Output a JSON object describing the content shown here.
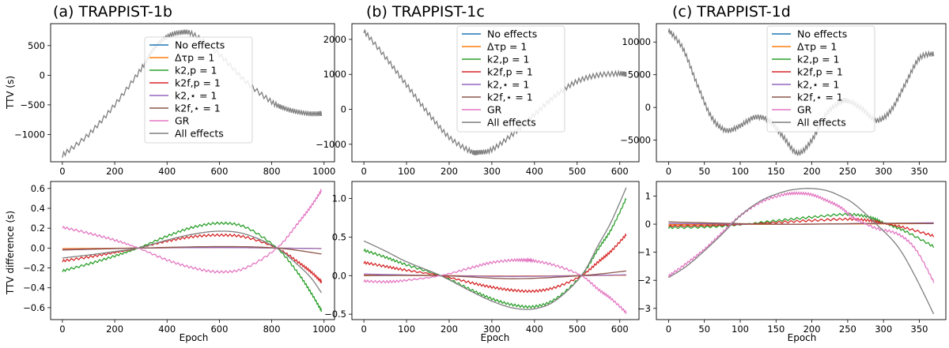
{
  "colors": {
    "No effects": "#1f77b4",
    "Δτp = 1": "#ff7f0e",
    "k2,p = 1": "#2ca02c",
    "k2f,p = 1": "#d62728",
    "k2,⋆ = 1": "#9467bd",
    "k2f,⋆ = 1": "#8c564b",
    "GR": "#e377c2",
    "All effects": "#7f7f7f"
  },
  "chart_data": [
    {
      "type": "line",
      "title": "(a) TRAPPIST-1b",
      "xlabel": "",
      "ylabel": "TTV (s)",
      "xlim": [
        -45,
        1040
      ],
      "ylim": [
        -1460,
        870
      ],
      "xticks": [
        0,
        200,
        400,
        600,
        800,
        1000
      ],
      "yticks": [
        -1000,
        -500,
        0,
        500
      ],
      "legend": [
        "No effects",
        "Δτp = 1",
        "k2,p = 1",
        "k2f,p = 1",
        "k2,⋆ = 1",
        "k2f,⋆ = 1",
        "GR",
        "All effects"
      ],
      "legend_position": "right",
      "series": [
        {
          "name": "All effects",
          "x": [
            0,
            100,
            200,
            300,
            350,
            400,
            450,
            500,
            600,
            700,
            800,
            850,
            900,
            950,
            990
          ],
          "y": [
            -1350,
            -1000,
            -500,
            100,
            450,
            650,
            720,
            690,
            350,
            -100,
            -450,
            -560,
            -620,
            -650,
            -645
          ]
        }
      ]
    },
    {
      "type": "line",
      "title": "(b) TRAPPIST-1c",
      "xlabel": "",
      "ylabel": "",
      "xlim": [
        -28,
        645
      ],
      "ylim": [
        -1500,
        2450
      ],
      "xticks": [
        0,
        100,
        200,
        300,
        400,
        500,
        600
      ],
      "yticks": [
        -1000,
        0,
        1000,
        2000
      ],
      "legend": [
        "No effects",
        "Δτp = 1",
        "k2,p = 1",
        "k2f,p = 1",
        "k2,⋆ = 1",
        "k2f,⋆ = 1",
        "GR",
        "All effects"
      ],
      "legend_position": "top-center",
      "series": [
        {
          "name": "All effects",
          "x": [
            0,
            50,
            100,
            150,
            200,
            250,
            270,
            300,
            350,
            400,
            450,
            500,
            550,
            600,
            615
          ],
          "y": [
            2250,
            1500,
            700,
            -100,
            -800,
            -1200,
            -1230,
            -1150,
            -700,
            -150,
            400,
            800,
            980,
            1020,
            1000
          ]
        }
      ]
    },
    {
      "type": "line",
      "title": "(c) TRAPPIST-1d",
      "xlabel": "",
      "ylabel": "",
      "xlim": [
        -17,
        387
      ],
      "ylim": [
        -8300,
        12800
      ],
      "xticks": [
        0,
        50,
        100,
        150,
        200,
        250,
        300,
        350
      ],
      "yticks": [
        -5000,
        0,
        5000,
        10000
      ],
      "legend": [
        "No effects",
        "Δτp = 1",
        "k2,p = 1",
        "k2f,p = 1",
        "k2,⋆ = 1",
        "k2f,⋆ = 1",
        "GR",
        "All effects"
      ],
      "legend_position": "top-center",
      "series": [
        {
          "name": "All effects",
          "x": [
            0,
            20,
            40,
            60,
            80,
            100,
            120,
            140,
            160,
            180,
            200,
            220,
            240,
            250,
            270,
            290,
            310,
            330,
            350,
            370
          ],
          "y": [
            11800,
            9000,
            3500,
            -1500,
            -3500,
            -2800,
            -1500,
            -2000,
            -4500,
            -7000,
            -5000,
            -1000,
            800,
            1000,
            -200,
            -2000,
            -500,
            3500,
            7500,
            8200
          ]
        }
      ]
    },
    {
      "type": "line",
      "title": "",
      "xlabel": "Epoch",
      "ylabel": "TTV difference (s)",
      "xlim": [
        -45,
        1040
      ],
      "ylim": [
        -0.72,
        0.67
      ],
      "xticks": [
        0,
        200,
        400,
        600,
        800,
        1000
      ],
      "yticks": [
        -0.6,
        -0.4,
        -0.2,
        0.0,
        0.2,
        0.4,
        0.6
      ],
      "series": [
        {
          "name": "Δτp = 1",
          "x": [
            0,
            290,
            600,
            820,
            990
          ],
          "y": [
            -0.005,
            0,
            0.005,
            0,
            -0.005
          ]
        },
        {
          "name": "k2,p = 1",
          "x": [
            0,
            100,
            200,
            290,
            400,
            500,
            600,
            700,
            820,
            900,
            950,
            990
          ],
          "y": [
            -0.23,
            -0.16,
            -0.08,
            0,
            0.12,
            0.21,
            0.25,
            0.21,
            0,
            -0.25,
            -0.45,
            -0.63
          ]
        },
        {
          "name": "k2f,p = 1",
          "x": [
            0,
            100,
            200,
            290,
            400,
            500,
            600,
            700,
            820,
            900,
            950,
            990
          ],
          "y": [
            -0.13,
            -0.09,
            -0.045,
            0,
            0.07,
            0.115,
            0.13,
            0.11,
            0,
            -0.14,
            -0.24,
            -0.34
          ]
        },
        {
          "name": "k2,⋆ = 1",
          "x": [
            0,
            290,
            600,
            820,
            990
          ],
          "y": [
            -0.015,
            0,
            0.005,
            0,
            -0.005
          ]
        },
        {
          "name": "k2f,⋆ = 1",
          "x": [
            0,
            290,
            600,
            820,
            990
          ],
          "y": [
            -0.02,
            0,
            0.015,
            0,
            -0.06
          ]
        },
        {
          "name": "GR",
          "x": [
            0,
            100,
            200,
            290,
            400,
            500,
            600,
            700,
            820,
            900,
            950,
            990
          ],
          "y": [
            0.21,
            0.15,
            0.08,
            0,
            -0.12,
            -0.2,
            -0.24,
            -0.2,
            0,
            0.25,
            0.42,
            0.58
          ]
        },
        {
          "name": "All effects",
          "x": [
            0,
            100,
            200,
            290,
            400,
            500,
            600,
            700,
            820,
            900,
            950,
            990
          ],
          "y": [
            -0.1,
            -0.07,
            -0.035,
            0,
            0.08,
            0.14,
            0.17,
            0.14,
            0,
            -0.17,
            -0.3,
            -0.45
          ]
        }
      ]
    },
    {
      "type": "line",
      "title": "",
      "xlabel": "Epoch",
      "ylabel": "",
      "xlim": [
        -28,
        645
      ],
      "ylim": [
        -0.57,
        1.22
      ],
      "xticks": [
        0,
        100,
        200,
        300,
        400,
        500,
        600
      ],
      "yticks": [
        -0.5,
        0.0,
        0.5,
        1.0
      ],
      "series": [
        {
          "name": "Δτp = 1",
          "x": [
            0,
            180,
            350,
            510,
            615
          ],
          "y": [
            0.005,
            0,
            -0.005,
            0,
            0.005
          ]
        },
        {
          "name": "k2,p = 1",
          "x": [
            0,
            50,
            100,
            180,
            250,
            300,
            350,
            400,
            450,
            510,
            550,
            580,
            615
          ],
          "y": [
            0.33,
            0.24,
            0.14,
            0,
            -0.18,
            -0.3,
            -0.38,
            -0.4,
            -0.3,
            0,
            0.35,
            0.6,
            1.0
          ]
        },
        {
          "name": "k2f,p = 1",
          "x": [
            0,
            50,
            100,
            180,
            250,
            300,
            350,
            400,
            450,
            510,
            550,
            580,
            615
          ],
          "y": [
            0.17,
            0.12,
            0.07,
            0,
            -0.09,
            -0.15,
            -0.19,
            -0.2,
            -0.15,
            0,
            0.18,
            0.32,
            0.53
          ]
        },
        {
          "name": "k2,⋆ = 1",
          "x": [
            0,
            180,
            350,
            510,
            615
          ],
          "y": [
            0.02,
            0,
            -0.01,
            0,
            0.01
          ]
        },
        {
          "name": "k2f,⋆ = 1",
          "x": [
            0,
            180,
            350,
            510,
            615
          ],
          "y": [
            0.0,
            0,
            -0.04,
            0,
            0.06
          ]
        },
        {
          "name": "GR",
          "x": [
            0,
            50,
            100,
            180,
            250,
            300,
            350,
            380,
            400,
            450,
            510,
            550,
            580,
            615
          ],
          "y": [
            -0.07,
            -0.08,
            -0.06,
            0,
            0.1,
            0.17,
            0.2,
            0.2,
            0.19,
            0.13,
            0,
            -0.18,
            -0.3,
            -0.48
          ]
        },
        {
          "name": "All effects",
          "x": [
            0,
            50,
            100,
            180,
            250,
            300,
            350,
            400,
            450,
            510,
            550,
            580,
            615
          ],
          "y": [
            0.45,
            0.32,
            0.18,
            0,
            -0.2,
            -0.33,
            -0.42,
            -0.43,
            -0.32,
            0,
            0.4,
            0.7,
            1.14
          ]
        }
      ]
    },
    {
      "type": "line",
      "title": "",
      "xlabel": "Epoch",
      "ylabel": "",
      "xlim": [
        -17,
        387
      ],
      "ylim": [
        -3.4,
        1.52
      ],
      "xticks": [
        0,
        50,
        100,
        150,
        200,
        250,
        300,
        350
      ],
      "yticks": [
        -3,
        -2,
        -1,
        0,
        1
      ],
      "series": [
        {
          "name": "Δτp = 1",
          "x": [
            0,
            185,
            370
          ],
          "y": [
            -0.02,
            0,
            0.02
          ]
        },
        {
          "name": "k2,p = 1",
          "x": [
            0,
            50,
            100,
            150,
            200,
            250,
            280,
            300,
            330,
            370
          ],
          "y": [
            -0.12,
            -0.1,
            -0.02,
            0.12,
            0.25,
            0.35,
            0.25,
            0.05,
            -0.25,
            -0.8
          ]
        },
        {
          "name": "k2f,p = 1",
          "x": [
            0,
            50,
            100,
            150,
            200,
            250,
            280,
            300,
            330,
            370
          ],
          "y": [
            -0.06,
            -0.05,
            -0.01,
            0.06,
            0.13,
            0.18,
            0.13,
            0.03,
            -0.13,
            -0.42
          ]
        },
        {
          "name": "k2,⋆ = 1",
          "x": [
            0,
            185,
            370
          ],
          "y": [
            0.02,
            0,
            0.05
          ]
        },
        {
          "name": "k2f,⋆ = 1",
          "x": [
            0,
            100,
            185,
            300,
            370
          ],
          "y": [
            0.08,
            0.02,
            0,
            0.03,
            0.02
          ]
        },
        {
          "name": "GR",
          "x": [
            0,
            25,
            50,
            75,
            100,
            130,
            160,
            180,
            200,
            220,
            240,
            260,
            290,
            320,
            345,
            370
          ],
          "y": [
            -1.85,
            -1.4,
            -0.9,
            -0.3,
            0.3,
            0.8,
            1.05,
            1.1,
            1.05,
            0.85,
            0.6,
            0.2,
            -0.15,
            -0.35,
            -0.9,
            -2.05
          ]
        },
        {
          "name": "All effects",
          "x": [
            0,
            25,
            50,
            75,
            100,
            130,
            160,
            180,
            200,
            220,
            240,
            260,
            290,
            320,
            345,
            370
          ],
          "y": [
            -1.9,
            -1.5,
            -0.95,
            -0.35,
            0.3,
            0.85,
            1.15,
            1.25,
            1.27,
            1.2,
            1.0,
            0.7,
            0.0,
            -0.8,
            -1.9,
            -3.2
          ]
        }
      ]
    }
  ]
}
